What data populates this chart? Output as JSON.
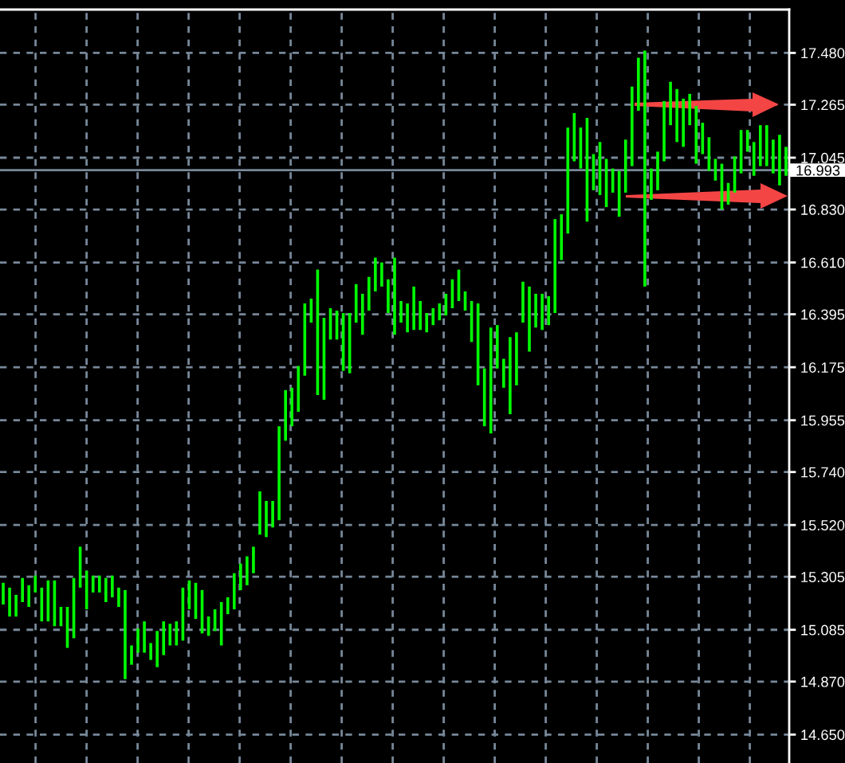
{
  "chart_data": {
    "type": "bar",
    "categories": [
      null,
      null,
      null,
      null,
      null,
      null,
      null,
      null,
      null,
      null,
      null,
      null,
      null,
      null,
      null,
      null,
      null,
      null,
      null,
      null,
      null,
      null,
      null,
      null,
      null,
      null,
      null,
      null,
      null,
      null,
      null,
      null,
      null,
      null,
      null,
      null,
      null,
      null,
      null,
      null,
      null,
      null,
      null,
      null,
      null,
      null,
      null,
      null,
      null,
      null,
      null,
      null,
      null,
      null,
      null,
      null,
      null,
      null,
      null,
      null,
      null,
      null,
      null,
      null,
      null,
      null,
      null,
      null,
      null,
      null,
      null,
      null,
      null,
      null,
      null,
      null,
      null,
      null,
      null,
      null,
      null,
      null,
      null,
      null,
      null,
      null,
      null,
      null,
      null,
      null,
      null,
      null,
      null,
      null,
      null,
      null,
      null,
      null,
      null,
      null,
      null,
      null,
      null,
      null,
      null,
      null,
      null,
      null,
      null,
      null,
      null,
      null,
      null,
      null,
      null,
      null,
      null,
      null,
      null,
      null,
      null,
      null,
      null
    ],
    "base": [
      15.19,
      15.14,
      15.14,
      15.2,
      15.18,
      15.24,
      15.12,
      15.12,
      15.1,
      15.1,
      15.01,
      15.05,
      15.26,
      15.17,
      15.24,
      15.24,
      15.2,
      15.22,
      15.18,
      14.88,
      14.94,
      14.99,
      14.99,
      14.96,
      14.93,
      14.98,
      15.02,
      15.02,
      15.04,
      15.17,
      15.13,
      15.07,
      15.06,
      15.08,
      15.02,
      15.15,
      15.17,
      15.25,
      15.27,
      15.32,
      15.48,
      15.47,
      15.51,
      15.54,
      15.87,
      15.93,
      15.99,
      16.14,
      16.36,
      16.06,
      16.04,
      16.29,
      16.29,
      16.16,
      16.15,
      16.36,
      16.31,
      16.41,
      16.49,
      16.51,
      16.4,
      16.31,
      16.36,
      16.32,
      16.33,
      16.33,
      16.32,
      16.35,
      16.37,
      16.39,
      16.42,
      16.45,
      16.41,
      16.28,
      16.1,
      15.93,
      15.9,
      16.17,
      16.09,
      15.98,
      16.1,
      16.36,
      16.24,
      16.34,
      16.33,
      16.35,
      16.4,
      16.62,
      16.73,
      17.03,
      17.0,
      16.78,
      16.91,
      16.89,
      16.84,
      16.9,
      16.8,
      16.9,
      17.01,
      17.24,
      16.51,
      16.87,
      16.91,
      17.03,
      17.18,
      17.11,
      17.09,
      17.18,
      17.02,
      17.06,
      16.99,
      16.95,
      16.83,
      16.85,
      16.9,
      16.98,
      17.07,
      16.97,
      17.01,
      17.01,
      16.98,
      16.93,
      16.97
    ],
    "values": [
      0.09,
      0.12,
      0.09,
      0.1,
      0.09,
      0.07,
      0.14,
      0.17,
      0.19,
      0.08,
      0.17,
      0.25,
      0.17,
      0.16,
      0.07,
      0.07,
      0.1,
      0.09,
      0.08,
      0.37,
      0.08,
      0.1,
      0.13,
      0.07,
      0.15,
      0.14,
      0.09,
      0.1,
      0.22,
      0.12,
      0.15,
      0.18,
      0.08,
      0.09,
      0.18,
      0.07,
      0.15,
      0.11,
      0.12,
      0.11,
      0.18,
      0.15,
      0.11,
      0.39,
      0.21,
      0.16,
      0.19,
      0.3,
      0.1,
      0.52,
      0.34,
      0.13,
      0.12,
      0.24,
      0.25,
      0.16,
      0.17,
      0.14,
      0.14,
      0.1,
      0.14,
      0.32,
      0.09,
      0.12,
      0.18,
      0.12,
      0.08,
      0.07,
      0.07,
      0.09,
      0.12,
      0.13,
      0.08,
      0.17,
      0.34,
      0.24,
      0.44,
      0.18,
      0.12,
      0.32,
      0.22,
      0.17,
      0.27,
      0.14,
      0.15,
      0.12,
      0.39,
      0.19,
      0.44,
      0.2,
      0.17,
      0.43,
      0.15,
      0.22,
      0.2,
      0.1,
      0.19,
      0.22,
      0.33,
      0.22,
      0.98,
      0.13,
      0.16,
      0.25,
      0.18,
      0.22,
      0.2,
      0.13,
      0.24,
      0.13,
      0.14,
      0.09,
      0.19,
      0.09,
      0.15,
      0.18,
      0.09,
      0.14,
      0.17,
      0.17,
      0.14,
      0.21,
      0.12
    ],
    "color": "#00ff00",
    "ylim": [
      14.532,
      17.66
    ],
    "yticks": [
      {
        "value": 14.65,
        "label": "14.650"
      },
      {
        "value": 14.87,
        "label": "14.870"
      },
      {
        "value": 15.085,
        "label": "15.085"
      },
      {
        "value": 15.305,
        "label": "15.305"
      },
      {
        "value": 15.52,
        "label": "15.520"
      },
      {
        "value": 15.74,
        "label": "15.740"
      },
      {
        "value": 15.955,
        "label": "15.955"
      },
      {
        "value": 16.175,
        "label": "16.175"
      },
      {
        "value": 16.395,
        "label": "16.395"
      },
      {
        "value": 16.61,
        "label": "16.610"
      },
      {
        "value": 16.83,
        "label": "16.830"
      },
      {
        "value": 17.045,
        "label": "17.045"
      },
      {
        "value": 17.265,
        "label": "17.265"
      },
      {
        "value": 17.48,
        "label": "17.480"
      }
    ],
    "grid": true,
    "tick_labels": "y",
    "ref_lines": [
      {
        "axis": "y",
        "value": 16.993,
        "label": "16.993",
        "color": "#778899",
        "line_style": "solid"
      }
    ]
  }
}
